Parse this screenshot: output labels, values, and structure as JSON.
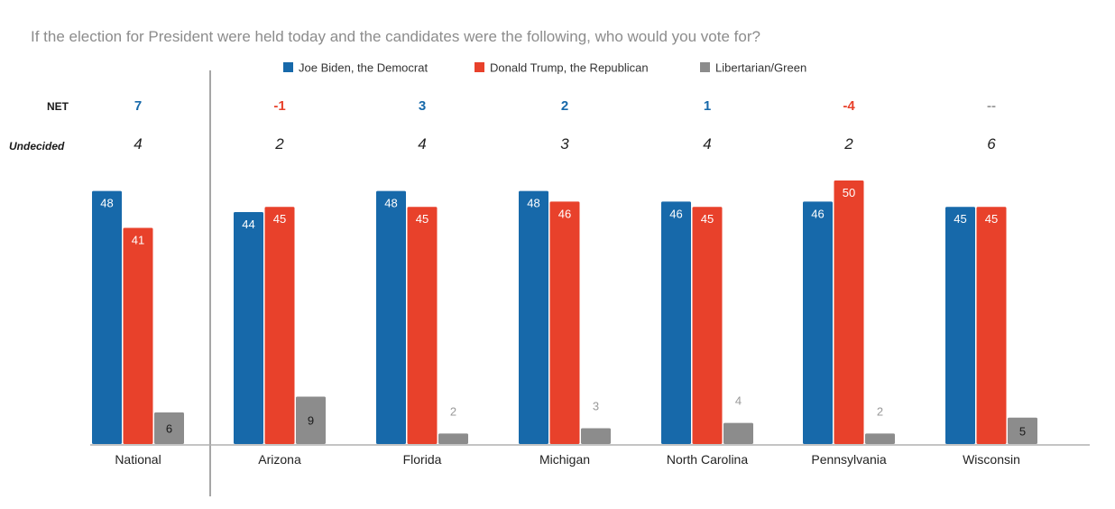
{
  "chart_data": {
    "type": "bar",
    "title": "If the election for President were held today and the candidates were the following, who would you vote for?",
    "categories": [
      "National",
      "Arizona",
      "Florida",
      "Michigan",
      "North Carolina",
      "Pennsylvania",
      "Wisconsin"
    ],
    "series": [
      {
        "name": "Joe Biden, the Democrat",
        "values": [
          48,
          44,
          48,
          48,
          46,
          46,
          45
        ]
      },
      {
        "name": "Donald Trump, the Republican",
        "values": [
          41,
          45,
          45,
          46,
          45,
          50,
          45
        ]
      },
      {
        "name": "Libertarian/Green",
        "values": [
          6,
          9,
          2,
          3,
          4,
          2,
          5
        ]
      }
    ],
    "ylim": [
      0,
      52
    ],
    "legend_position": "top-center",
    "grid": false,
    "rows": {
      "net_label": "NET",
      "net_values": [
        "7",
        "-1",
        "3",
        "2",
        "1",
        "-4",
        "--"
      ],
      "undecided_label": "Undecided",
      "undecided_values": [
        "4",
        "2",
        "4",
        "3",
        "4",
        "2",
        "6"
      ]
    },
    "colors": {
      "biden": "#1769aa",
      "trump": "#e8412b",
      "other": "#8c8c8c",
      "net_positive": "#1769aa",
      "net_negative": "#e8412b",
      "net_neutral": "#999999"
    }
  }
}
